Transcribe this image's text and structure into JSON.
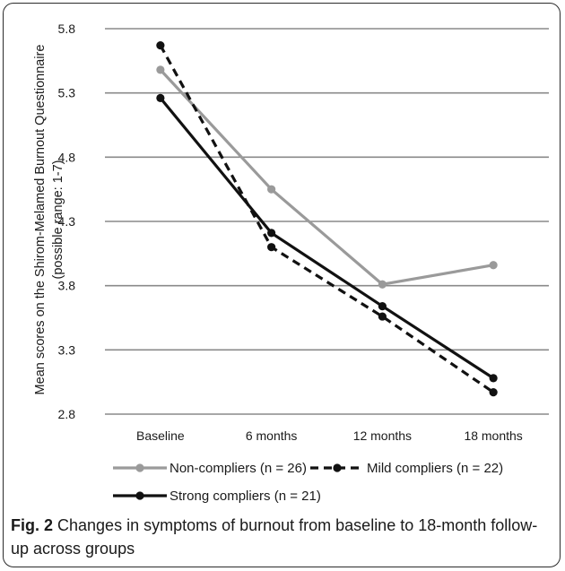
{
  "chart_data": {
    "type": "line",
    "categories": [
      "Baseline",
      "6 months",
      "12 months",
      "18 months"
    ],
    "ylabel": [
      "Mean scores on the Shirom-Melamed Burnout Questionnaire",
      "(possible range: 1-7)"
    ],
    "ylim": [
      2.8,
      5.8
    ],
    "yticks": [
      "2.8",
      "3.3",
      "3.8",
      "4.3",
      "4.8",
      "5.3",
      "5.8"
    ],
    "grid": true,
    "legend_position": "bottom",
    "series": [
      {
        "name": "Non-compliers (n = 26)",
        "values": [
          5.48,
          4.55,
          3.81,
          3.96
        ],
        "color": "#9a9a9a",
        "dash": false
      },
      {
        "name": "Mild compliers (n = 22)",
        "values": [
          5.67,
          4.1,
          3.56,
          2.97
        ],
        "color": "#111111",
        "dash": true
      },
      {
        "name": "Strong compliers (n = 21)",
        "values": [
          5.26,
          4.21,
          3.64,
          3.08
        ],
        "color": "#111111",
        "dash": false
      }
    ]
  },
  "caption": {
    "label": "Fig. 2",
    "text": " Changes in symptoms of burnout from baseline to 18-month follow-up across groups"
  }
}
